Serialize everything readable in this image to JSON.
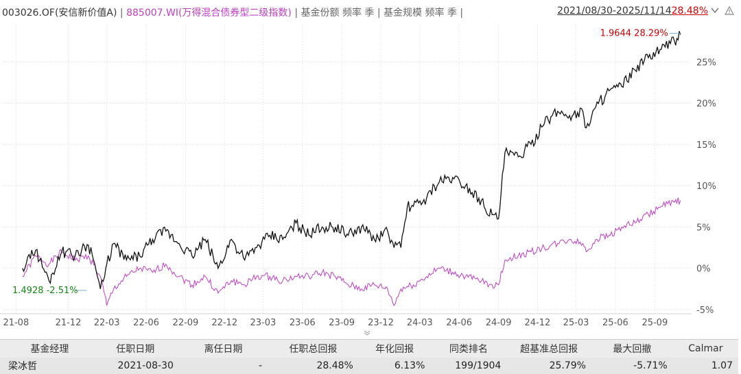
{
  "header": {
    "fund_code": "003026.OF(安信新价值A)",
    "sep1": " | ",
    "bench_code": "885007.WI(万得混合债券型二级指数)",
    "sep2": " | ",
    "extra": "基金份额 频率 季 | 基金规模 频率 季 |",
    "date_range": "2021/08/30-2025/11/14",
    "range_return": "28.48%",
    "dropdown_icon": "chevron-down-icon",
    "alert_icon": "warning-icon"
  },
  "chart_data": {
    "type": "line",
    "ylim": [
      -5.5,
      29.5
    ],
    "ytick_values": [
      -5,
      0,
      5,
      10,
      15,
      20,
      25
    ],
    "ytick_labels": [
      "-5%",
      "0%",
      "5%",
      "10%",
      "15%",
      "20%",
      "25%"
    ],
    "xtick_labels": [
      "21-08",
      "21-12",
      "22-03",
      "22-06",
      "22-09",
      "22-12",
      "23-03",
      "23-06",
      "23-09",
      "23-12",
      "24-03",
      "24-06",
      "24-09",
      "24-12",
      "25-03",
      "25-06",
      "25-09"
    ],
    "grid": true,
    "series": [
      {
        "name": "003026.OF(安信新价值A)",
        "color": "#111111",
        "x": [
          "2021-08-30",
          "2021-09-30",
          "2021-10-31",
          "2021-11-30",
          "2021-12-31",
          "2022-01-31",
          "2022-02-15",
          "2022-02-28",
          "2022-03-10",
          "2022-03-15",
          "2022-03-31",
          "2022-04-30",
          "2022-05-31",
          "2022-06-30",
          "2022-07-31",
          "2022-08-31",
          "2022-09-30",
          "2022-10-31",
          "2022-11-30",
          "2022-12-31",
          "2023-01-31",
          "2023-02-28",
          "2023-03-31",
          "2023-04-30",
          "2023-05-31",
          "2023-06-30",
          "2023-07-31",
          "2023-08-31",
          "2023-09-30",
          "2023-10-31",
          "2023-11-30",
          "2023-12-31",
          "2024-01-15",
          "2024-01-31",
          "2024-02-15",
          "2024-02-29",
          "2024-03-31",
          "2024-04-30",
          "2024-05-31",
          "2024-06-30",
          "2024-07-31",
          "2024-08-31",
          "2024-09-15",
          "2024-09-30",
          "2024-10-31",
          "2024-11-30",
          "2024-12-31",
          "2025-01-31",
          "2025-02-28",
          "2025-03-31",
          "2025-04-08",
          "2025-04-30",
          "2025-05-31",
          "2025-06-30",
          "2025-07-31",
          "2025-08-31",
          "2025-09-30",
          "2025-10-31",
          "2025-11-14"
        ],
        "y": [
          0.0,
          2.2,
          -1.5,
          2.0,
          1.5,
          2.8,
          0.5,
          -2.5,
          -1.0,
          0.5,
          3.0,
          1.0,
          1.5,
          3.5,
          4.5,
          3.0,
          1.5,
          3.5,
          0.0,
          3.5,
          1.0,
          2.5,
          4.0,
          3.5,
          5.5,
          4.0,
          5.0,
          5.0,
          4.0,
          5.0,
          3.5,
          4.5,
          2.5,
          2.5,
          7.5,
          7.5,
          8.5,
          10.5,
          11.0,
          10.0,
          8.5,
          6.5,
          6.0,
          14.0,
          13.5,
          15.0,
          17.5,
          19.0,
          18.5,
          19.0,
          17.0,
          19.5,
          21.5,
          22.0,
          24.0,
          25.5,
          26.5,
          27.5,
          28.29
        ],
        "end_label": "1.9644 28.29%",
        "start_label": "1.4928 -2.51%"
      },
      {
        "name": "885007.WI(万得混合债券型二级指数)",
        "color": "#c03cc7",
        "x": [
          "2021-08-30",
          "2021-09-30",
          "2021-10-31",
          "2021-11-30",
          "2021-12-31",
          "2022-01-31",
          "2022-02-28",
          "2022-03-15",
          "2022-03-31",
          "2022-04-30",
          "2022-05-31",
          "2022-06-30",
          "2022-07-31",
          "2022-08-31",
          "2022-09-30",
          "2022-10-31",
          "2022-11-30",
          "2022-12-31",
          "2023-01-31",
          "2023-02-28",
          "2023-03-31",
          "2023-04-30",
          "2023-05-31",
          "2023-06-30",
          "2023-07-31",
          "2023-08-31",
          "2023-09-30",
          "2023-10-31",
          "2023-11-30",
          "2023-12-31",
          "2024-01-15",
          "2024-01-31",
          "2024-02-29",
          "2024-03-31",
          "2024-04-30",
          "2024-05-31",
          "2024-06-30",
          "2024-07-31",
          "2024-08-31",
          "2024-09-15",
          "2024-09-30",
          "2024-10-31",
          "2024-11-30",
          "2024-12-31",
          "2025-01-31",
          "2025-02-28",
          "2025-03-31",
          "2025-04-08",
          "2025-04-30",
          "2025-05-31",
          "2025-06-30",
          "2025-07-31",
          "2025-08-31",
          "2025-09-30",
          "2025-10-31",
          "2025-11-14"
        ],
        "y": [
          -1.0,
          1.5,
          0.5,
          2.0,
          1.0,
          1.5,
          -1.0,
          -4.5,
          -2.5,
          -1.0,
          0.0,
          -0.5,
          0.5,
          -1.0,
          -2.0,
          -1.0,
          -3.0,
          -1.5,
          -2.0,
          -1.0,
          -1.0,
          -1.5,
          -1.0,
          -1.0,
          -0.5,
          -1.0,
          -2.0,
          -2.5,
          -2.0,
          -2.5,
          -4.5,
          -2.5,
          -2.0,
          -1.0,
          0.0,
          -0.5,
          -1.0,
          -1.5,
          -2.0,
          -2.0,
          1.0,
          1.5,
          2.0,
          2.5,
          3.0,
          3.5,
          3.0,
          2.0,
          3.5,
          4.0,
          5.0,
          5.5,
          6.5,
          7.5,
          8.0,
          8.2
        ]
      }
    ]
  },
  "table": {
    "headers": [
      "基金经理",
      "任职日期",
      "离任日期",
      "任职总回报",
      "年化回报",
      "同类排名",
      "超基准总回报",
      "最大回撤",
      "Calmar"
    ],
    "row": [
      "梁冰哲",
      "2021-08-30",
      "-",
      "28.48%",
      "6.13%",
      "199/1904",
      "25.79%",
      "-5.71%",
      "1.07"
    ]
  }
}
